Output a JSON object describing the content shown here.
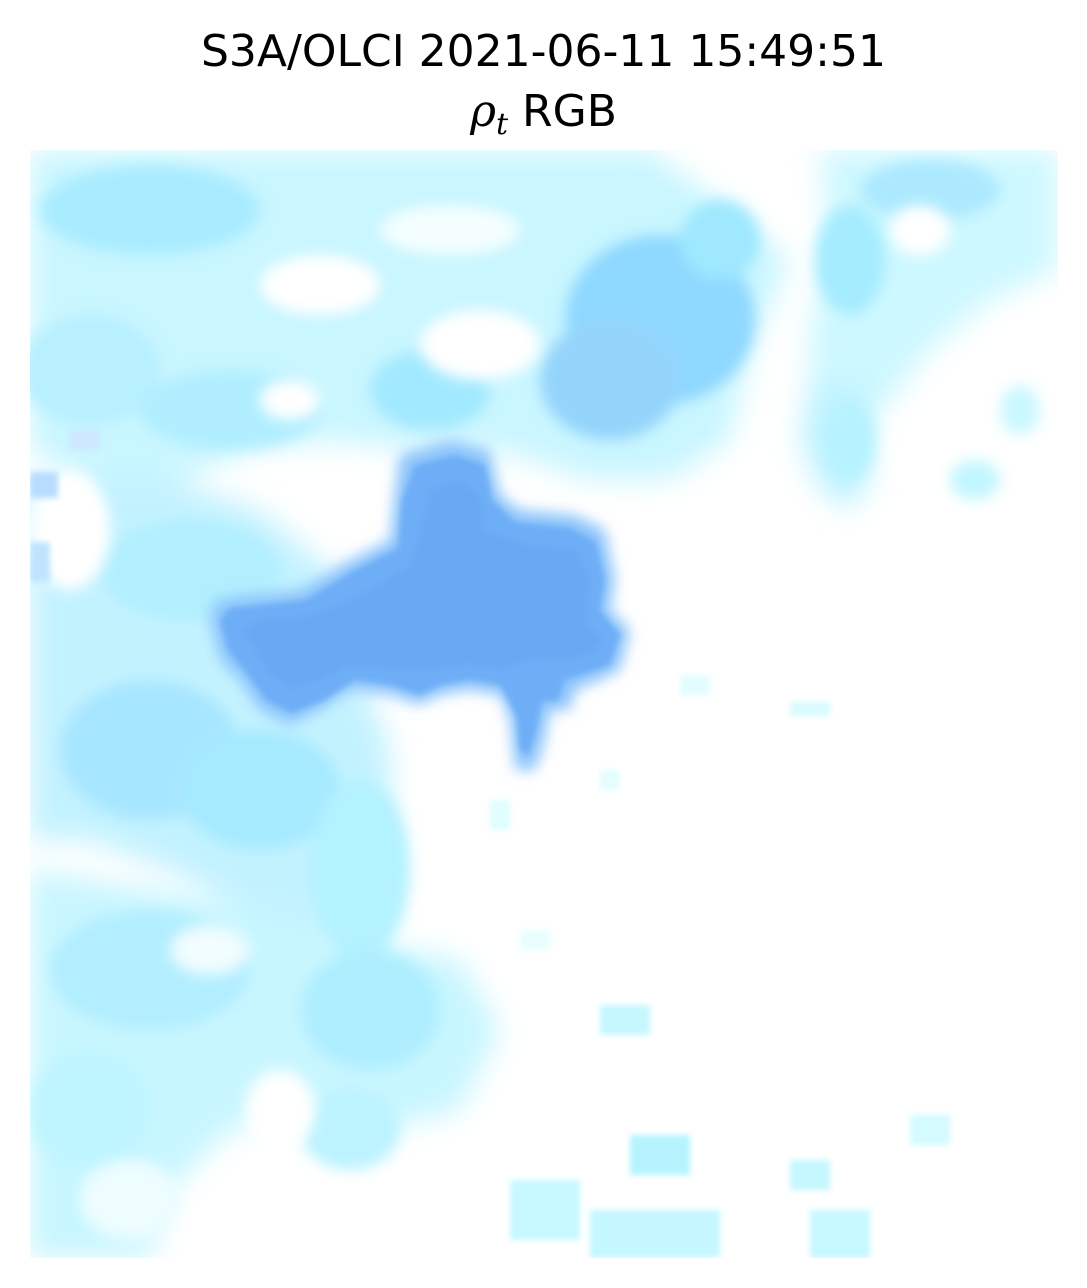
{
  "figure": {
    "title_line1": "S3A/OLCI 2021-06-11 15:49:51",
    "title_symbol": "ρ",
    "title_subscript": "t",
    "title_suffix": " RGB"
  },
  "image": {
    "description_kind": "satellite RGB composite of top-of-atmosphere reflectance",
    "palette": {
      "background": "#ffffff",
      "haze_light": "#d7fbff",
      "haze_cyan": "#b6f3ff",
      "haze_mid": "#9fe6ff",
      "haze_blue": "#9cd2ff",
      "water_body": "#6fb0f8",
      "water_core": "#6aa9f5"
    }
  }
}
